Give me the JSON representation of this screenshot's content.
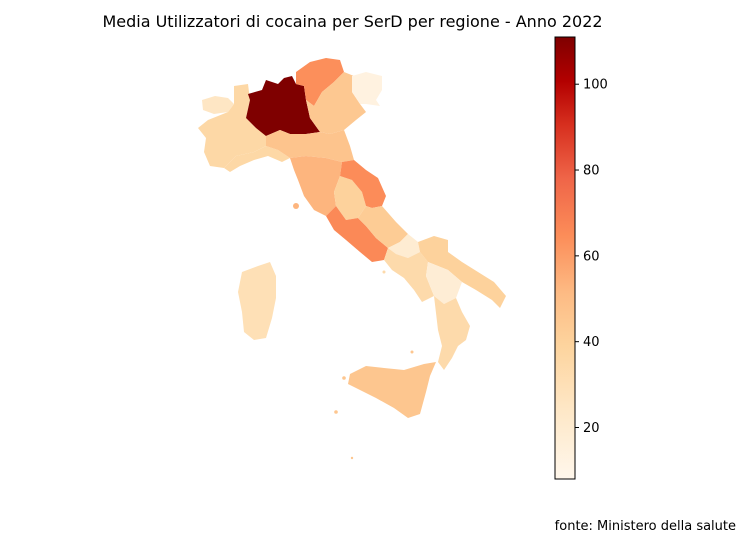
{
  "title": "Media Utilizzatori di cocaina per SerD per regione - Anno 2022",
  "source": "fonte: Ministero della salute",
  "colormap": "OrRd",
  "colorbar": {
    "min": 8,
    "max": 111,
    "ticks": [
      20,
      40,
      60,
      80,
      100
    ]
  },
  "regions": [
    {
      "name": "Valle d'Aosta",
      "value": 25
    },
    {
      "name": "Piemonte",
      "value": 36
    },
    {
      "name": "Lombardia",
      "value": 111
    },
    {
      "name": "Trentino-Alto Adige",
      "value": 64
    },
    {
      "name": "Veneto",
      "value": 45
    },
    {
      "name": "Friuli-Venezia Giulia",
      "value": 13
    },
    {
      "name": "Liguria",
      "value": 36
    },
    {
      "name": "Emilia-Romagna",
      "value": 47
    },
    {
      "name": "Toscana",
      "value": 53
    },
    {
      "name": "Umbria",
      "value": 40
    },
    {
      "name": "Marche",
      "value": 65
    },
    {
      "name": "Lazio",
      "value": 66
    },
    {
      "name": "Abruzzo",
      "value": 43
    },
    {
      "name": "Molise",
      "value": 19
    },
    {
      "name": "Campania",
      "value": 34
    },
    {
      "name": "Puglia",
      "value": 40
    },
    {
      "name": "Basilicata",
      "value": 18
    },
    {
      "name": "Calabria",
      "value": 34
    },
    {
      "name": "Sicilia",
      "value": 46
    },
    {
      "name": "Sardegna",
      "value": 30
    }
  ]
}
